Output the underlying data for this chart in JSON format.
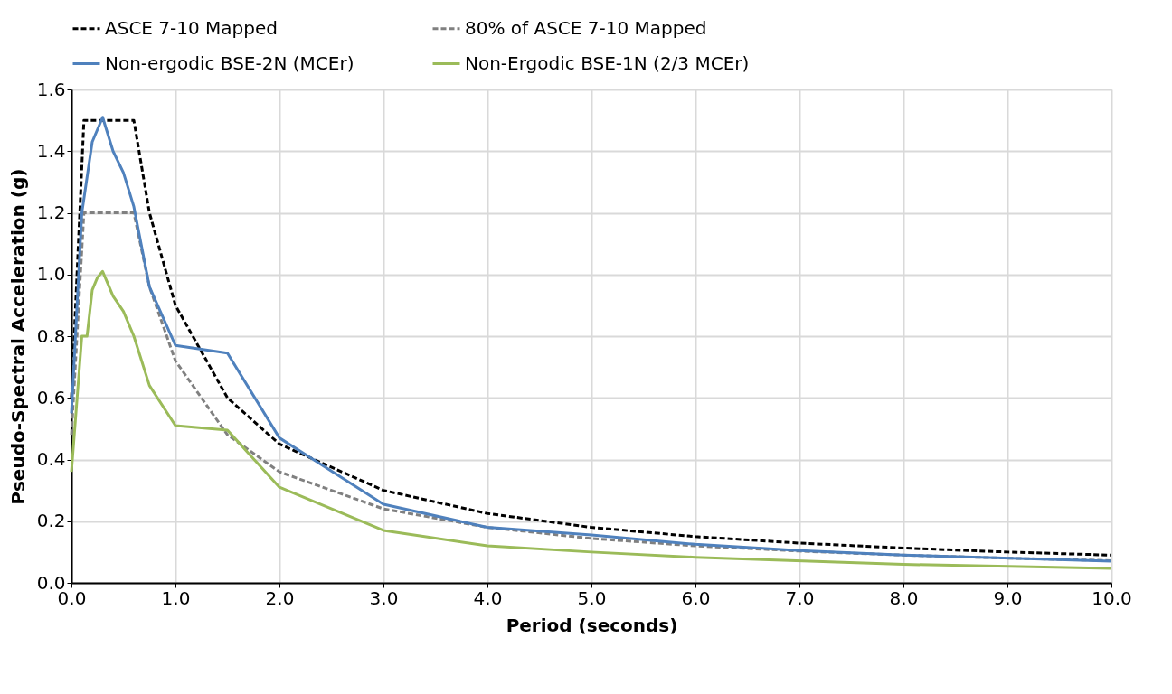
{
  "chart_data": {
    "type": "line",
    "xlabel": "Period (seconds)",
    "ylabel": "Pseudo-Spectral Acceleration (g)",
    "xlim": [
      0,
      10
    ],
    "xticks": [
      {
        "value": 0,
        "label": "0.0"
      },
      {
        "value": 1,
        "label": "1.0"
      },
      {
        "value": 2,
        "label": "2.0"
      },
      {
        "value": 3,
        "label": "3.0"
      },
      {
        "value": 4,
        "label": "4.0"
      },
      {
        "value": 5,
        "label": "5.0"
      },
      {
        "value": 6,
        "label": "6.0"
      },
      {
        "value": 7,
        "label": "7.0"
      },
      {
        "value": 8,
        "label": "8.0"
      },
      {
        "value": 9,
        "label": "9.0"
      },
      {
        "value": 10,
        "label": "10.0"
      }
    ],
    "ylim": [
      0,
      1.6
    ],
    "yticks": [
      {
        "value": 0,
        "label": "0.0"
      },
      {
        "value": 0.2,
        "label": "0.2"
      },
      {
        "value": 0.4,
        "label": "0.4"
      },
      {
        "value": 0.6,
        "label": "0.6"
      },
      {
        "value": 0.8,
        "label": "0.8"
      },
      {
        "value": 1,
        "label": "1.0"
      },
      {
        "value": 1.2,
        "label": "1.2"
      },
      {
        "value": 1.4,
        "label": "1.4"
      },
      {
        "value": 1.6,
        "label": "1.6"
      }
    ],
    "grid": true,
    "legend": "top",
    "marker": "none",
    "series": [
      {
        "name": "ASCE 7-10 Mapped",
        "color": "#000000",
        "line_style": "dashed",
        "x": [
          0,
          0.12,
          0.6,
          0.75,
          1,
          1.5,
          2,
          3,
          4,
          5,
          6,
          7,
          8,
          9,
          10
        ],
        "values": [
          0.6,
          1.5,
          1.5,
          1.2,
          0.9,
          0.6,
          0.45,
          0.3,
          0.225,
          0.18,
          0.15,
          0.129,
          0.113,
          0.1,
          0.09
        ]
      },
      {
        "name": "80% of ASCE 7-10 Mapped",
        "color": "#808080",
        "line_style": "dashed",
        "x": [
          0,
          0.12,
          0.6,
          0.75,
          1,
          1.5,
          2,
          3,
          4,
          5,
          6,
          7,
          8,
          9,
          10
        ],
        "values": [
          0.48,
          1.2,
          1.2,
          0.96,
          0.72,
          0.48,
          0.36,
          0.24,
          0.18,
          0.144,
          0.12,
          0.103,
          0.09,
          0.08,
          0.072
        ]
      },
      {
        "name": "Non-ergodic BSE-2N (MCEr)",
        "color": "#4f81bd",
        "line_style": "solid",
        "x": [
          0,
          0.1,
          0.2,
          0.3,
          0.4,
          0.5,
          0.6,
          0.75,
          1,
          1.5,
          2,
          3,
          4,
          5,
          6,
          7,
          8,
          10
        ],
        "values": [
          0.55,
          1.2,
          1.43,
          1.51,
          1.4,
          1.33,
          1.22,
          0.96,
          0.77,
          0.745,
          0.47,
          0.255,
          0.18,
          0.155,
          0.125,
          0.105,
          0.09,
          0.07
        ]
      },
      {
        "name": "Non-Ergodic BSE-1N (2/3 MCEr)",
        "color": "#9bbb59",
        "line_style": "solid",
        "x": [
          0,
          0.1,
          0.15,
          0.2,
          0.25,
          0.3,
          0.4,
          0.5,
          0.6,
          0.75,
          1,
          1.5,
          2,
          3,
          4,
          5,
          6,
          8,
          10
        ],
        "values": [
          0.36,
          0.8,
          0.8,
          0.95,
          0.99,
          1.01,
          0.93,
          0.88,
          0.8,
          0.64,
          0.51,
          0.495,
          0.31,
          0.17,
          0.12,
          0.1,
          0.083,
          0.06,
          0.047
        ]
      }
    ]
  }
}
